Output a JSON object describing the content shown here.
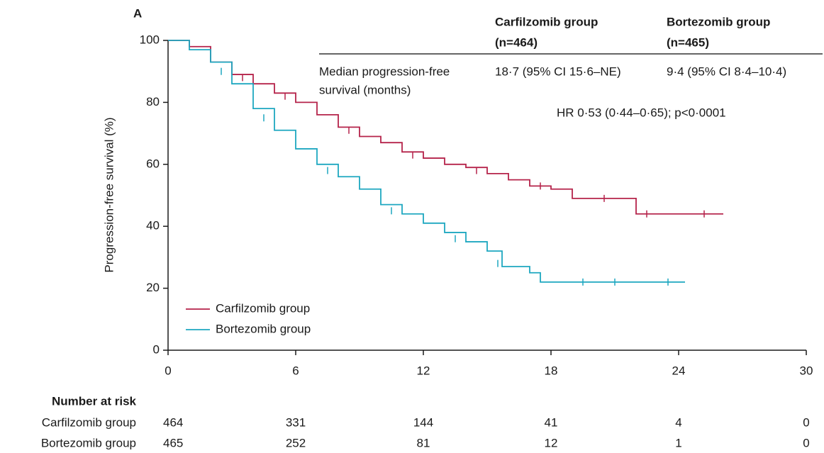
{
  "chart_data": {
    "type": "line",
    "step": true,
    "title": "A",
    "ylabel": "Progression-free survival (%)",
    "xlim": [
      0,
      30
    ],
    "ylim": [
      0,
      100
    ],
    "xticks": [
      0,
      6,
      12,
      18,
      24,
      30
    ],
    "yticks": [
      0,
      20,
      40,
      60,
      80,
      100
    ],
    "series": [
      {
        "name": "Carfilzomib group",
        "color": "#b5234a",
        "x": [
          0,
          1,
          2,
          3,
          4,
          5,
          6,
          7,
          8,
          9,
          10,
          11,
          12,
          13,
          14,
          15,
          16,
          17,
          18,
          19,
          22,
          26.1
        ],
        "values": [
          100,
          98,
          93,
          89,
          86,
          83,
          80,
          76,
          72,
          69,
          67,
          64,
          62,
          60,
          59,
          57,
          55,
          53,
          52,
          49,
          44,
          44
        ],
        "censor_x": [
          3.5,
          5.5,
          8.5,
          11.5,
          14.5,
          17.5,
          20.5,
          22.5,
          25.2
        ],
        "censor_values": [
          88,
          82,
          71,
          63,
          58,
          53,
          49,
          44,
          44
        ]
      },
      {
        "name": "Bortezomib group",
        "color": "#1ea7c0",
        "x": [
          0,
          1,
          2,
          3,
          4,
          5,
          6,
          7,
          8,
          9,
          10,
          11,
          12,
          13,
          14,
          15,
          15.7,
          17,
          17.5,
          24.3
        ],
        "values": [
          100,
          97,
          93,
          86,
          78,
          71,
          65,
          60,
          56,
          52,
          47,
          44,
          41,
          38,
          35,
          32,
          27,
          25,
          22,
          22
        ],
        "censor_x": [
          2.5,
          4.5,
          7.5,
          10.5,
          13.5,
          15.5,
          19.5,
          21,
          23.5
        ],
        "censor_values": [
          90,
          75,
          58,
          45,
          36,
          28,
          22,
          22,
          22
        ]
      }
    ],
    "legend": "lower left",
    "stats_table": {
      "columns": [
        [
          "Carfilzomib group",
          "(n=464)"
        ],
        [
          "Bortezomib group",
          "(n=465)"
        ]
      ],
      "row_label": [
        "Median progression-free",
        "survival (months)"
      ],
      "row_values": [
        "18·7 (95% CI 15·6–NE)",
        "9·4 (95% CI 8·4–10·4)"
      ],
      "hr": "HR 0·53 (0·44–0·65); p<0·0001"
    },
    "risk_table": {
      "title": "Number at risk",
      "rows": [
        {
          "label": "Carfilzomib group",
          "counts": [
            464,
            331,
            144,
            41,
            4,
            0
          ]
        },
        {
          "label": "Bortezomib group",
          "counts": [
            465,
            252,
            81,
            12,
            1,
            0
          ]
        }
      ]
    }
  }
}
